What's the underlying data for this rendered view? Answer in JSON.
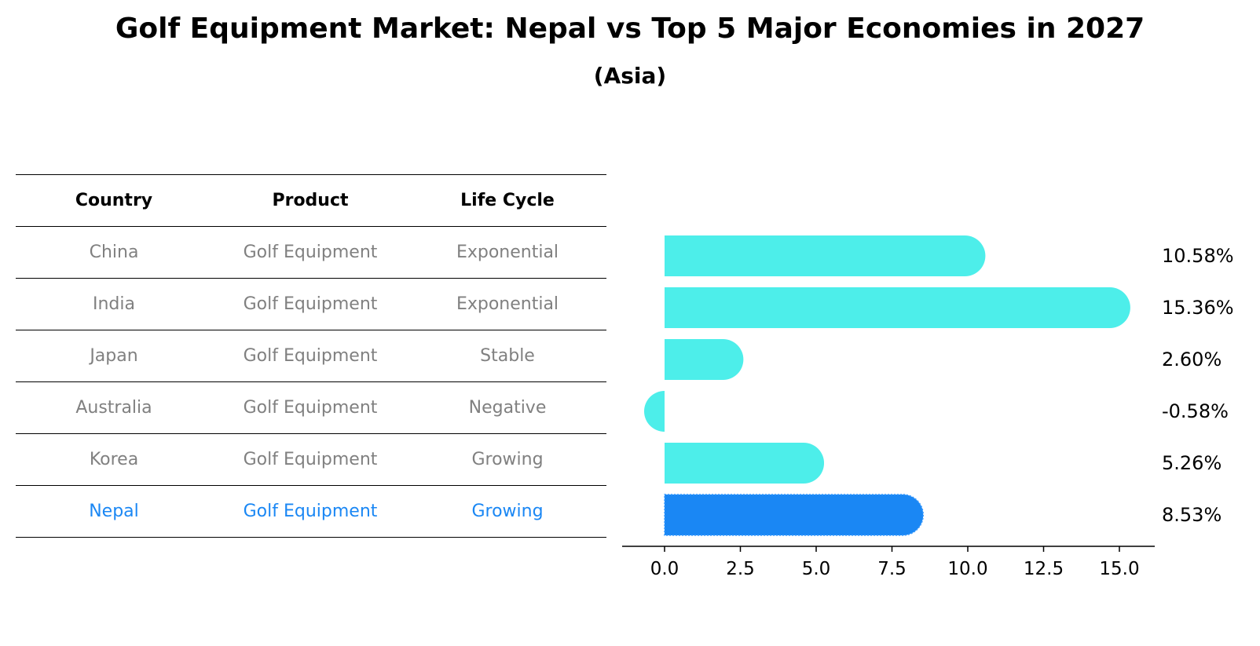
{
  "title": "Golf Equipment Market: Nepal vs Top 5 Major Economies in 2027",
  "subtitle": "(Asia)",
  "table": {
    "headers": [
      "Country",
      "Product",
      "Life Cycle"
    ],
    "rows": [
      [
        "China",
        "Golf Equipment",
        "Exponential"
      ],
      [
        "India",
        "Golf Equipment",
        "Exponential"
      ],
      [
        "Japan",
        "Golf Equipment",
        "Stable"
      ],
      [
        "Australia",
        "Golf Equipment",
        "Negative"
      ],
      [
        "Korea",
        "Golf Equipment",
        "Growing"
      ],
      [
        "Nepal",
        "Golf Equipment",
        "Growing"
      ]
    ],
    "highlight_row": 5
  },
  "chart_data": {
    "type": "bar",
    "orientation": "horizontal",
    "categories": [
      "China",
      "India",
      "Japan",
      "Australia",
      "Korea",
      "Nepal"
    ],
    "values": [
      10.58,
      15.36,
      2.6,
      -0.58,
      5.26,
      8.53
    ],
    "value_labels": [
      "10.58%",
      "15.36%",
      "2.60%",
      "-0.58%",
      "5.26%",
      "8.53%"
    ],
    "xlim": [
      -1.4,
      16.2
    ],
    "xticks": [
      0.0,
      2.5,
      5.0,
      7.5,
      10.0,
      12.5,
      15.0
    ],
    "xtick_labels": [
      "0.0",
      "2.5",
      "5.0",
      "7.5",
      "10.0",
      "12.5",
      "15.0"
    ],
    "highlight_index": 5,
    "colors": {
      "bar": "#4deeea",
      "highlight": "#1a87f4"
    }
  }
}
